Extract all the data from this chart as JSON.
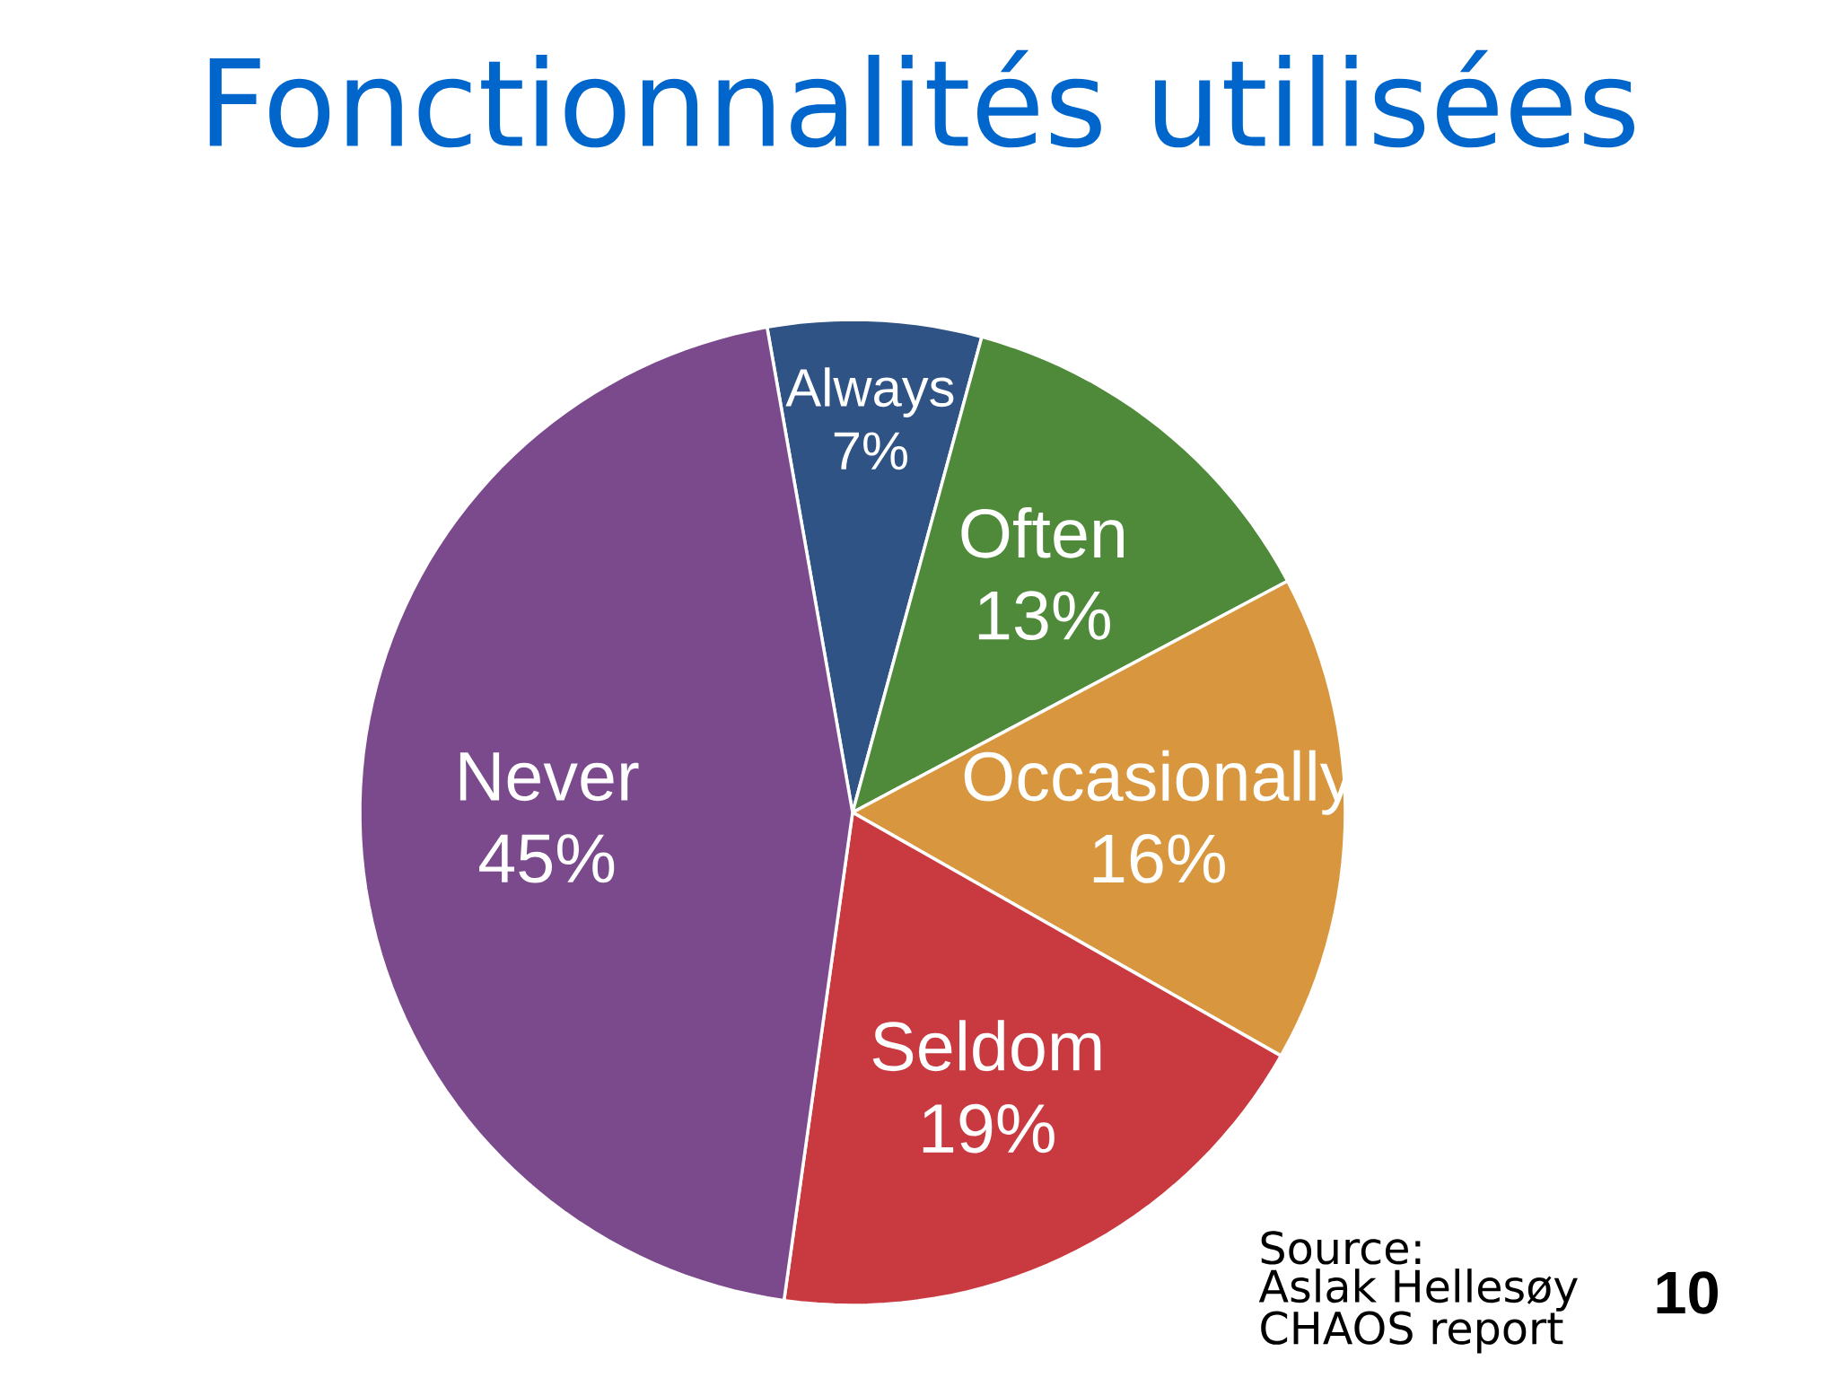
{
  "chart_data": {
    "type": "pie",
    "title": "Fonctionnalités utilisées",
    "categories": [
      "Always",
      "Often",
      "Occasionally",
      "Seldom",
      "Never"
    ],
    "values": [
      7,
      13,
      16,
      19,
      45
    ],
    "value_labels": [
      "7%",
      "13%",
      "16%",
      "19%",
      "45%"
    ],
    "colors": [
      "#2e5384",
      "#4f8a3a",
      "#d8973e",
      "#c93a40",
      "#7b4a8c"
    ],
    "annotations": [
      "Source:",
      "Aslak Hellesøy",
      "CHAOS report",
      "10"
    ]
  }
}
